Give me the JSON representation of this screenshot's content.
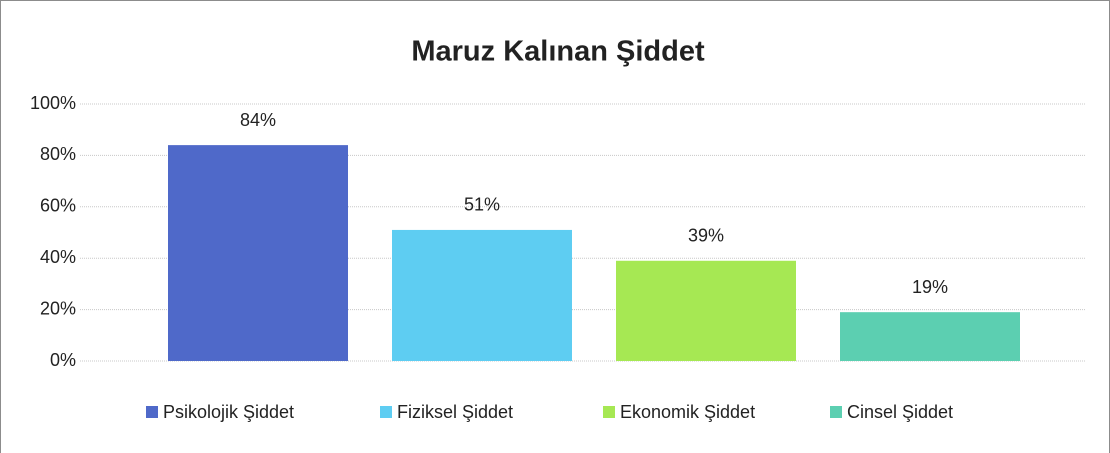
{
  "chart_data": {
    "type": "bar",
    "title": "Maruz Kalınan Şiddet",
    "categories": [
      null
    ],
    "series": [
      {
        "name": "Psikolojik Şiddet",
        "color": "#4f69c9",
        "values": [
          84
        ],
        "value_labels": [
          "84%"
        ]
      },
      {
        "name": "Fiziksel Şiddet",
        "color": "#5ecdf2",
        "values": [
          51
        ],
        "value_labels": [
          "51%"
        ]
      },
      {
        "name": "Ekonomik Şiddet",
        "color": "#a6e853",
        "values": [
          39
        ],
        "value_labels": [
          "39%"
        ]
      },
      {
        "name": "Cinsel Şiddet",
        "color": "#5ccfb1",
        "values": [
          19
        ],
        "value_labels": [
          "19%"
        ]
      }
    ],
    "ylim": [
      0,
      100
    ],
    "yticks": [
      {
        "value": 0,
        "label": "0%"
      },
      {
        "value": 20,
        "label": "20%"
      },
      {
        "value": 40,
        "label": "40%"
      },
      {
        "value": 60,
        "label": "60%"
      },
      {
        "value": 80,
        "label": "80%"
      },
      {
        "value": 100,
        "label": "100%"
      }
    ],
    "grid": true,
    "legend": "bottom"
  }
}
